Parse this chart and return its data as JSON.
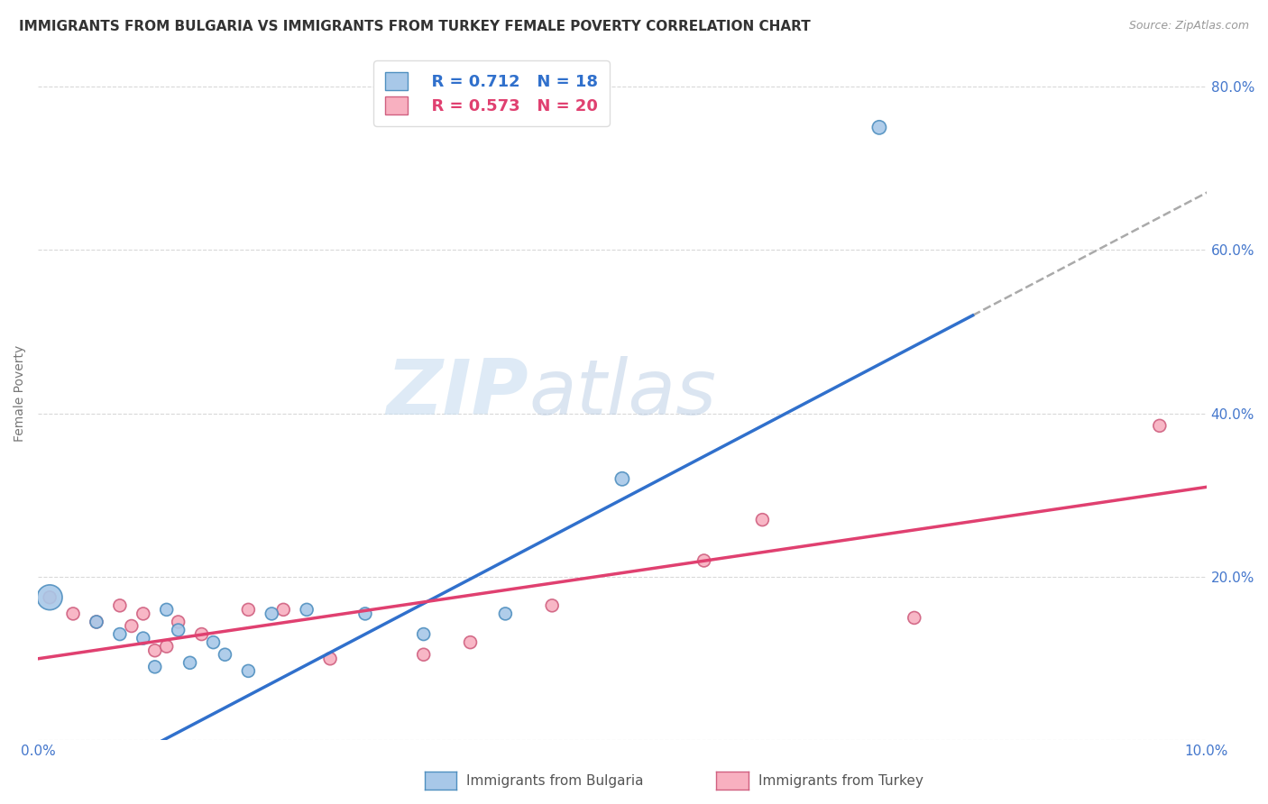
{
  "title": "IMMIGRANTS FROM BULGARIA VS IMMIGRANTS FROM TURKEY FEMALE POVERTY CORRELATION CHART",
  "source": "Source: ZipAtlas.com",
  "ylabel": "Female Poverty",
  "xlim": [
    0.0,
    0.1
  ],
  "ylim": [
    0.0,
    0.85
  ],
  "bulgaria_color": "#a8c8e8",
  "bulgaria_edge": "#5090c0",
  "turkey_color": "#f8b0c0",
  "turkey_edge": "#d06080",
  "regression_bulgaria_color": "#3070cc",
  "regression_turkey_color": "#e04070",
  "legend_R_bulgaria": "R = 0.712",
  "legend_N_bulgaria": "N = 18",
  "legend_R_turkey": "R = 0.573",
  "legend_N_turkey": "N = 20",
  "background_color": "#ffffff",
  "grid_color": "#d0d0d0",
  "watermark_zip": "ZIP",
  "watermark_atlas": "atlas",
  "bulgaria_x": [
    0.001,
    0.005,
    0.007,
    0.009,
    0.01,
    0.011,
    0.012,
    0.013,
    0.015,
    0.016,
    0.018,
    0.02,
    0.023,
    0.028,
    0.033,
    0.04,
    0.05,
    0.072
  ],
  "bulgaria_y": [
    0.175,
    0.145,
    0.13,
    0.125,
    0.09,
    0.16,
    0.135,
    0.095,
    0.12,
    0.105,
    0.085,
    0.155,
    0.16,
    0.155,
    0.13,
    0.155,
    0.32,
    0.75
  ],
  "bulgaria_size": [
    400,
    100,
    100,
    100,
    100,
    100,
    100,
    100,
    100,
    100,
    100,
    100,
    100,
    100,
    100,
    100,
    120,
    120
  ],
  "turkey_x": [
    0.001,
    0.003,
    0.005,
    0.007,
    0.008,
    0.009,
    0.01,
    0.011,
    0.012,
    0.014,
    0.018,
    0.021,
    0.025,
    0.033,
    0.037,
    0.044,
    0.057,
    0.062,
    0.075,
    0.096
  ],
  "turkey_y": [
    0.175,
    0.155,
    0.145,
    0.165,
    0.14,
    0.155,
    0.11,
    0.115,
    0.145,
    0.13,
    0.16,
    0.16,
    0.1,
    0.105,
    0.12,
    0.165,
    0.22,
    0.27,
    0.15,
    0.385
  ],
  "turkey_size": [
    100,
    100,
    100,
    100,
    100,
    100,
    100,
    100,
    100,
    100,
    100,
    100,
    100,
    100,
    100,
    100,
    100,
    100,
    100,
    100
  ],
  "reg_b_slope": 7.5,
  "reg_b_intercept": -0.08,
  "reg_t_slope": 2.1,
  "reg_t_intercept": 0.1
}
